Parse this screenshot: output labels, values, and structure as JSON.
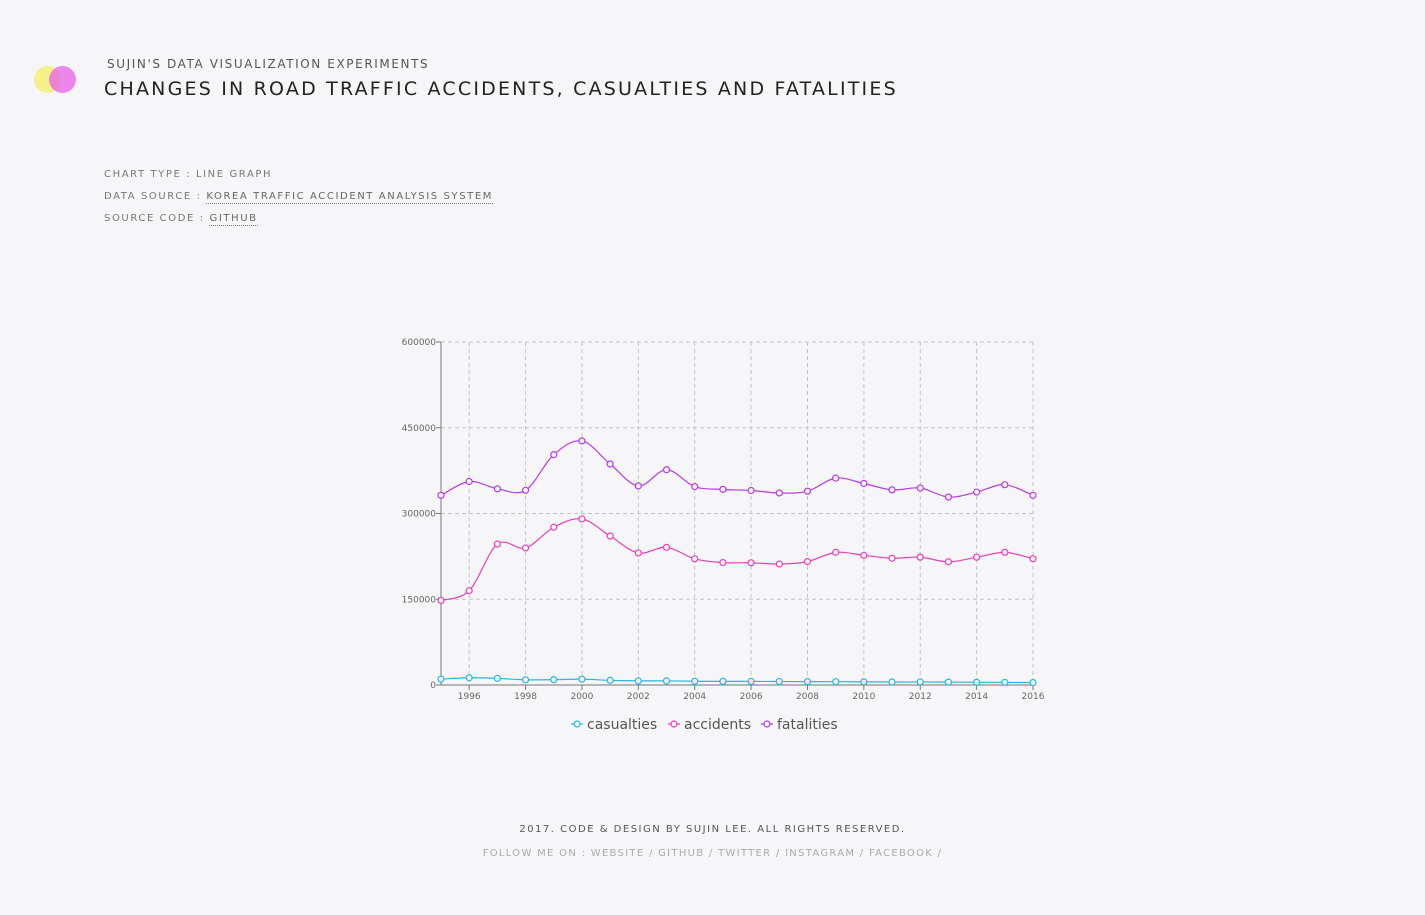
{
  "header": {
    "kicker": "SUJIN'S DATA VISUALIZATION EXPERIMENTS",
    "title": "CHANGES IN ROAD TRAFFIC ACCIDENTS, CASUALTIES AND FATALITIES"
  },
  "meta": {
    "chart_type_label": "CHART TYPE : ",
    "chart_type_value": "LINE GRAPH",
    "source_label": "DATA SOURCE : ",
    "source_link": "KOREA TRAFFIC ACCIDENT ANALYSIS SYSTEM",
    "code_label": "SOURCE CODE : ",
    "code_link": "GITHUB"
  },
  "footer": {
    "copyright": "2017. CODE & DESIGN BY SUJIN LEE. ALL RIGHTS RESERVED.",
    "follow_label": "FOLLOW ME ON : ",
    "links": [
      "WEBSITE",
      "GITHUB",
      "TWITTER",
      "INSTAGRAM",
      "FACEBOOK"
    ],
    "separator": " / "
  },
  "chart_data": {
    "type": "line",
    "title": "",
    "xlabel": "",
    "ylabel": "",
    "x": [
      1995,
      1996,
      1997,
      1998,
      1999,
      2000,
      2001,
      2002,
      2003,
      2004,
      2005,
      2006,
      2007,
      2008,
      2009,
      2010,
      2011,
      2012,
      2013,
      2014,
      2015,
      2016
    ],
    "xlim": [
      1995,
      2016
    ],
    "ylim": [
      0,
      600000
    ],
    "x_ticks": [
      1996,
      1998,
      2000,
      2002,
      2004,
      2006,
      2008,
      2010,
      2012,
      2014,
      2016
    ],
    "y_ticks": [
      0,
      150000,
      300000,
      450000,
      600000
    ],
    "grid": true,
    "legend_position": "bottom-center",
    "series": [
      {
        "name": "casualties",
        "color": "#29b6e0",
        "values": [
          10323,
          12653,
          11603,
          9057,
          9353,
          10236,
          8097,
          7222,
          7212,
          6563,
          6376,
          6327,
          6166,
          5870,
          5838,
          5505,
          5229,
          5392,
          5092,
          4762,
          4621,
          4292
        ]
      },
      {
        "name": "accidents",
        "color": "#e63fb8",
        "values": [
          148000,
          165000,
          246452,
          239721,
          275938,
          290481,
          260579,
          231026,
          240832,
          220755,
          214171,
          213745,
          211662,
          215822,
          231990,
          226878,
          221711,
          223656,
          215354,
          223552,
          232035,
          220917
        ]
      },
      {
        "name": "fatalities",
        "color": "#b83ae0",
        "values": [
          331747,
          355962,
          343159,
          340564,
          402967,
          426984,
          386539,
          348184,
          376503,
          346987,
          342233,
          340229,
          335906,
          338962,
          361875,
          352458,
          341391,
          344565,
          328711,
          337497,
          350400,
          331720
        ]
      }
    ]
  }
}
